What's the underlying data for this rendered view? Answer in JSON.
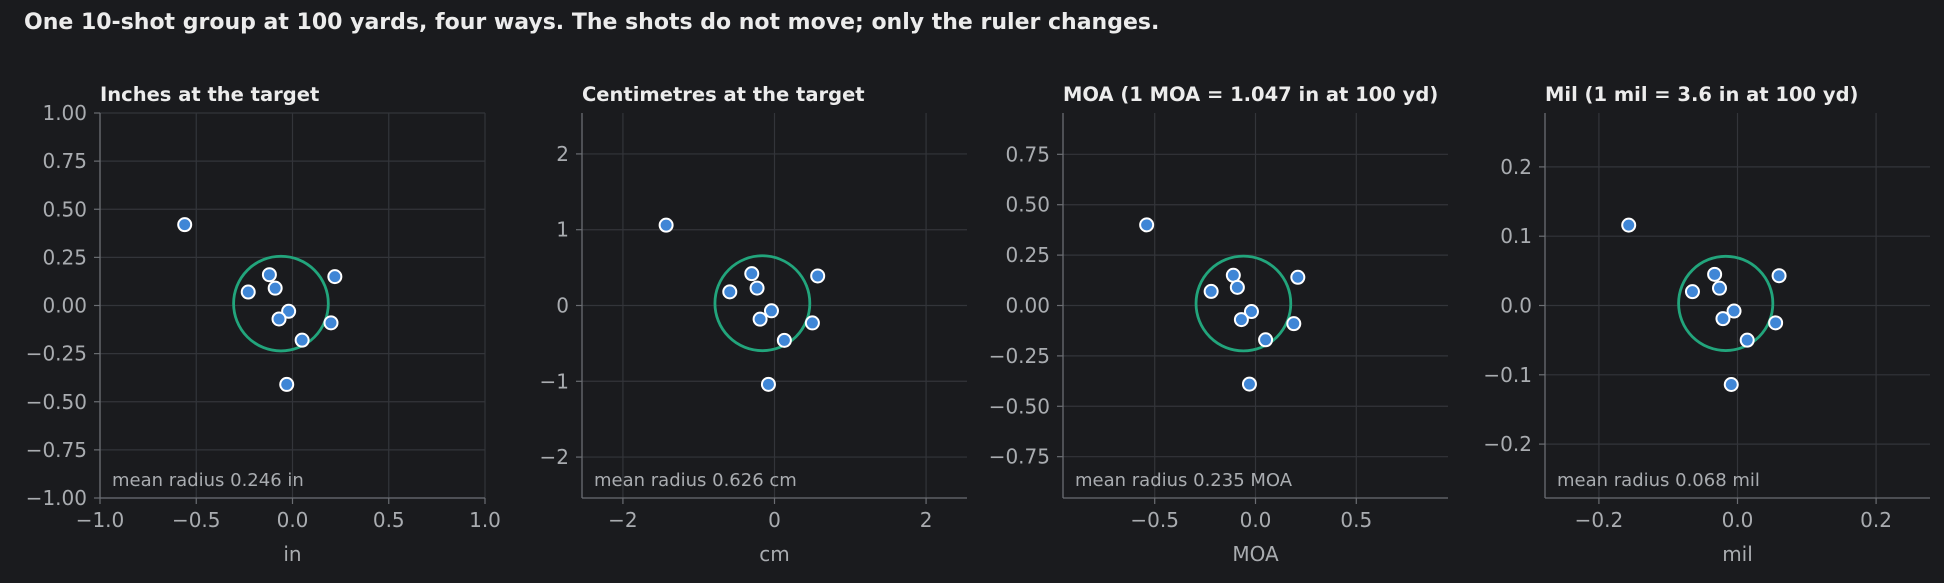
{
  "suptitle": "One 10-shot group at 100 yards, four ways. The shots do not move; only the ruler changes.",
  "colors": {
    "background": "#1a1b1e",
    "grid": "#33353a",
    "spine": "#6b6e73",
    "tick_text": "#a9acb0",
    "title_text": "#ececec",
    "marker_fill": "#3f86d6",
    "marker_edge": "#ffffff",
    "circle": "#22a57c",
    "annotation_text": "#a9acb0"
  },
  "chart_data": [
    {
      "type": "scatter",
      "title": "Inches at the target",
      "xlabel": "in",
      "ylabel": "",
      "xlim": [
        -1.0,
        1.0
      ],
      "ylim": [
        -1.0,
        1.0
      ],
      "xticks": [
        -1.0,
        -0.5,
        0.0,
        0.5,
        1.0
      ],
      "xtick_labels": [
        "−1.0",
        "−0.5",
        "0.0",
        "0.5",
        "1.0"
      ],
      "yticks": [
        1.0,
        0.75,
        0.5,
        0.25,
        0.0,
        -0.25,
        -0.5,
        -0.75,
        -1.0
      ],
      "ytick_labels": [
        "1.00",
        "0.75",
        "0.50",
        "0.25",
        "0.00",
        "−0.25",
        "−0.50",
        "−0.75",
        "−1.00"
      ],
      "grid": true,
      "points": [
        {
          "x": -0.56,
          "y": 0.42
        },
        {
          "x": -0.12,
          "y": 0.16
        },
        {
          "x": 0.22,
          "y": 0.15
        },
        {
          "x": -0.09,
          "y": 0.09
        },
        {
          "x": -0.23,
          "y": 0.07
        },
        {
          "x": -0.02,
          "y": -0.03
        },
        {
          "x": -0.07,
          "y": -0.07
        },
        {
          "x": 0.2,
          "y": -0.09
        },
        {
          "x": 0.05,
          "y": -0.18
        },
        {
          "x": -0.03,
          "y": -0.41
        }
      ],
      "circle": {
        "cx": -0.06,
        "cy": 0.01,
        "r": 0.246
      },
      "annotation": "mean radius 0.246 in"
    },
    {
      "type": "scatter",
      "title": "Centimetres at the target",
      "xlabel": "cm",
      "ylabel": "",
      "xlim": [
        -2.54,
        2.54
      ],
      "ylim": [
        -2.54,
        2.54
      ],
      "xticks": [
        -2,
        0,
        2
      ],
      "xtick_labels": [
        "−2",
        "0",
        "2"
      ],
      "yticks": [
        2,
        1,
        0,
        -1,
        -2
      ],
      "ytick_labels": [
        "2",
        "1",
        "0",
        "−1",
        "−2"
      ],
      "grid": true,
      "points": [
        {
          "x": -1.43,
          "y": 1.06
        },
        {
          "x": -0.3,
          "y": 0.42
        },
        {
          "x": 0.57,
          "y": 0.39
        },
        {
          "x": -0.23,
          "y": 0.23
        },
        {
          "x": -0.59,
          "y": 0.18
        },
        {
          "x": -0.04,
          "y": -0.07
        },
        {
          "x": -0.19,
          "y": -0.18
        },
        {
          "x": 0.5,
          "y": -0.23
        },
        {
          "x": 0.13,
          "y": -0.46
        },
        {
          "x": -0.08,
          "y": -1.04
        }
      ],
      "circle": {
        "cx": -0.16,
        "cy": 0.03,
        "r": 0.626
      },
      "annotation": "mean radius 0.626 cm"
    },
    {
      "type": "scatter",
      "title": "MOA (1 MOA = 1.047 in at 100 yd)",
      "xlabel": "MOA",
      "ylabel": "",
      "xlim": [
        -0.955,
        0.955
      ],
      "ylim": [
        -0.955,
        0.955
      ],
      "xticks": [
        -0.5,
        0.0,
        0.5
      ],
      "xtick_labels": [
        "−0.5",
        "0.0",
        "0.5"
      ],
      "yticks": [
        0.75,
        0.5,
        0.25,
        0.0,
        -0.25,
        -0.5,
        -0.75
      ],
      "ytick_labels": [
        "0.75",
        "0.50",
        "0.25",
        "0.00",
        "−0.25",
        "−0.50",
        "−0.75"
      ],
      "grid": true,
      "points": [
        {
          "x": -0.54,
          "y": 0.4
        },
        {
          "x": -0.11,
          "y": 0.15
        },
        {
          "x": 0.21,
          "y": 0.14
        },
        {
          "x": -0.09,
          "y": 0.09
        },
        {
          "x": -0.22,
          "y": 0.07
        },
        {
          "x": -0.02,
          "y": -0.03
        },
        {
          "x": -0.07,
          "y": -0.07
        },
        {
          "x": 0.19,
          "y": -0.09
        },
        {
          "x": 0.05,
          "y": -0.17
        },
        {
          "x": -0.03,
          "y": -0.39
        }
      ],
      "circle": {
        "cx": -0.06,
        "cy": 0.01,
        "r": 0.235
      },
      "annotation": "mean radius 0.235 MOA"
    },
    {
      "type": "scatter",
      "title": "Mil (1 mil = 3.6 in at 100 yd)",
      "xlabel": "mil",
      "ylabel": "",
      "xlim": [
        -0.2778,
        0.2778
      ],
      "ylim": [
        -0.2778,
        0.2778
      ],
      "xticks": [
        -0.2,
        0.0,
        0.2
      ],
      "xtick_labels": [
        "−0.2",
        "0.0",
        "0.2"
      ],
      "yticks": [
        0.2,
        0.1,
        0.0,
        -0.1,
        -0.2
      ],
      "ytick_labels": [
        "0.2",
        "0.1",
        "0.0",
        "−0.1",
        "−0.2"
      ],
      "grid": true,
      "points": [
        {
          "x": -0.157,
          "y": 0.116
        },
        {
          "x": -0.033,
          "y": 0.045
        },
        {
          "x": 0.06,
          "y": 0.043
        },
        {
          "x": -0.026,
          "y": 0.025
        },
        {
          "x": -0.065,
          "y": 0.02
        },
        {
          "x": -0.005,
          "y": -0.008
        },
        {
          "x": -0.021,
          "y": -0.019
        },
        {
          "x": 0.055,
          "y": -0.025
        },
        {
          "x": 0.014,
          "y": -0.05
        },
        {
          "x": -0.009,
          "y": -0.114
        }
      ],
      "circle": {
        "cx": -0.017,
        "cy": 0.003,
        "r": 0.068
      },
      "annotation": "mean radius 0.068 mil"
    }
  ]
}
